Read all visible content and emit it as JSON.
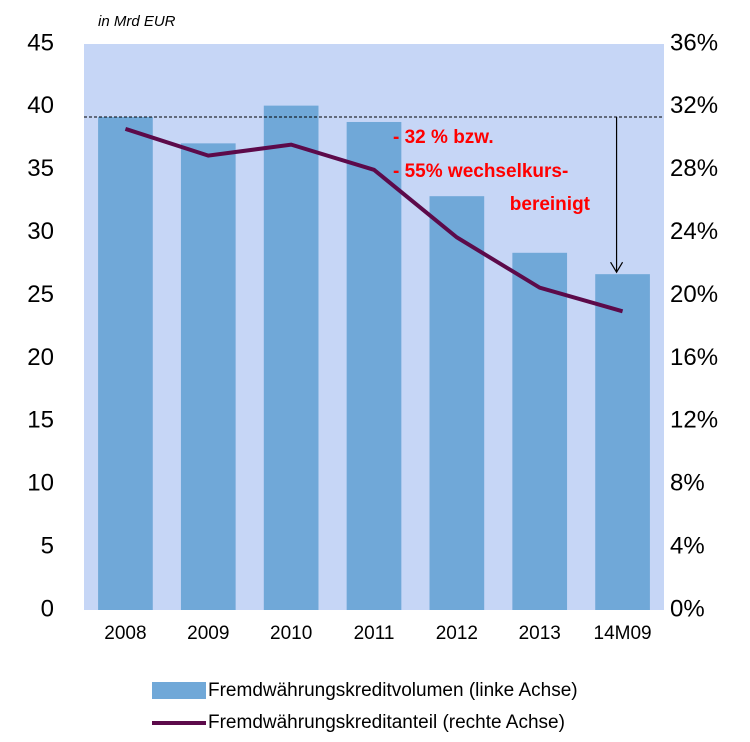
{
  "chart_data": {
    "type": "bar-line",
    "annotations": [
      "in Mrd EUR",
      "- 32 % bzw.",
      "- 55% wechselkurs-",
      "bereinigt"
    ],
    "categories": [
      "2008",
      "2009",
      "2010",
      "2011",
      "2012",
      "2013",
      "14M09"
    ],
    "series": [
      {
        "name": "Fremdwährungskreditvolumen (linke Achse)",
        "type": "bar",
        "color": "#70a8d8",
        "values": [
          39.2,
          37.1,
          40.1,
          38.8,
          32.9,
          28.4,
          26.7
        ]
      },
      {
        "name": "Fremdwährungskreditanteil (rechte Achse)",
        "type": "line",
        "axis": "y2",
        "color": "#5c0a4a",
        "values": [
          30.6,
          28.9,
          29.6,
          28.0,
          23.7,
          20.5,
          19.0
        ]
      }
    ],
    "ylim": [
      0,
      45
    ],
    "yticks": [
      0,
      5,
      10,
      15,
      20,
      25,
      30,
      35,
      40,
      45
    ],
    "y2lim": [
      0,
      36
    ],
    "y2ticks": [
      {
        "value": 0,
        "label": "0%"
      },
      {
        "value": 4,
        "label": "4%"
      },
      {
        "value": 8,
        "label": "8%"
      },
      {
        "value": 12,
        "label": "12%"
      },
      {
        "value": 16,
        "label": "16%"
      },
      {
        "value": 20,
        "label": "20%"
      },
      {
        "value": 24,
        "label": "24%"
      },
      {
        "value": 28,
        "label": "28%"
      },
      {
        "value": 32,
        "label": "32%"
      },
      {
        "value": 36,
        "label": "36%"
      }
    ],
    "background": "#c6d6f6"
  }
}
